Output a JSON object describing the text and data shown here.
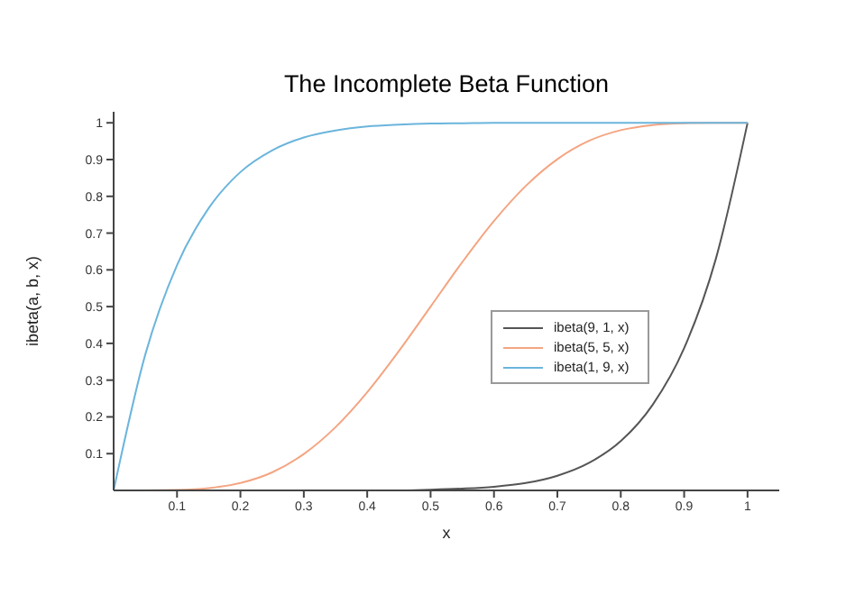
{
  "chart_data": {
    "type": "line",
    "title": "The Incomplete Beta Function",
    "xlabel": "x",
    "ylabel": "ibeta(a, b, x)",
    "x": [
      0,
      0.05,
      0.1,
      0.15,
      0.2,
      0.25,
      0.3,
      0.35,
      0.4,
      0.45,
      0.5,
      0.55,
      0.6,
      0.65,
      0.7,
      0.75,
      0.8,
      0.85,
      0.9,
      0.95,
      1
    ],
    "series": [
      {
        "name": "ibeta(9, 1, x)",
        "color": "#555555",
        "values": [
          0,
          0,
          0,
          0,
          0,
          0,
          0,
          0,
          0,
          0,
          0.002,
          0.005,
          0.01,
          0.02,
          0.04,
          0.075,
          0.134,
          0.232,
          0.387,
          0.63,
          1
        ]
      },
      {
        "name": "ibeta(5, 5, x)",
        "color": "#f4a582",
        "values": [
          0,
          0,
          0.001,
          0.006,
          0.02,
          0.049,
          0.099,
          0.172,
          0.267,
          0.379,
          0.5,
          0.621,
          0.733,
          0.828,
          0.901,
          0.951,
          0.98,
          0.994,
          0.999,
          1,
          1
        ]
      },
      {
        "name": "ibeta(1, 9, x)",
        "color": "#6bb5dc",
        "values": [
          0,
          0.37,
          0.613,
          0.768,
          0.866,
          0.925,
          0.96,
          0.979,
          0.99,
          0.995,
          0.998,
          0.999,
          1,
          1,
          1,
          1,
          1,
          1,
          1,
          1,
          1
        ]
      }
    ],
    "xlim": [
      0,
      1.05
    ],
    "ylim": [
      0,
      1.03
    ],
    "xticks": [
      0.1,
      0.2,
      0.3,
      0.4,
      0.5,
      0.6,
      0.7,
      0.8,
      0.9,
      1
    ],
    "yticks": [
      0.1,
      0.2,
      0.3,
      0.4,
      0.5,
      0.6,
      0.7,
      0.8,
      0.9,
      1
    ],
    "legend": "right",
    "grid": false,
    "marker": "none",
    "line_style": "solid"
  }
}
